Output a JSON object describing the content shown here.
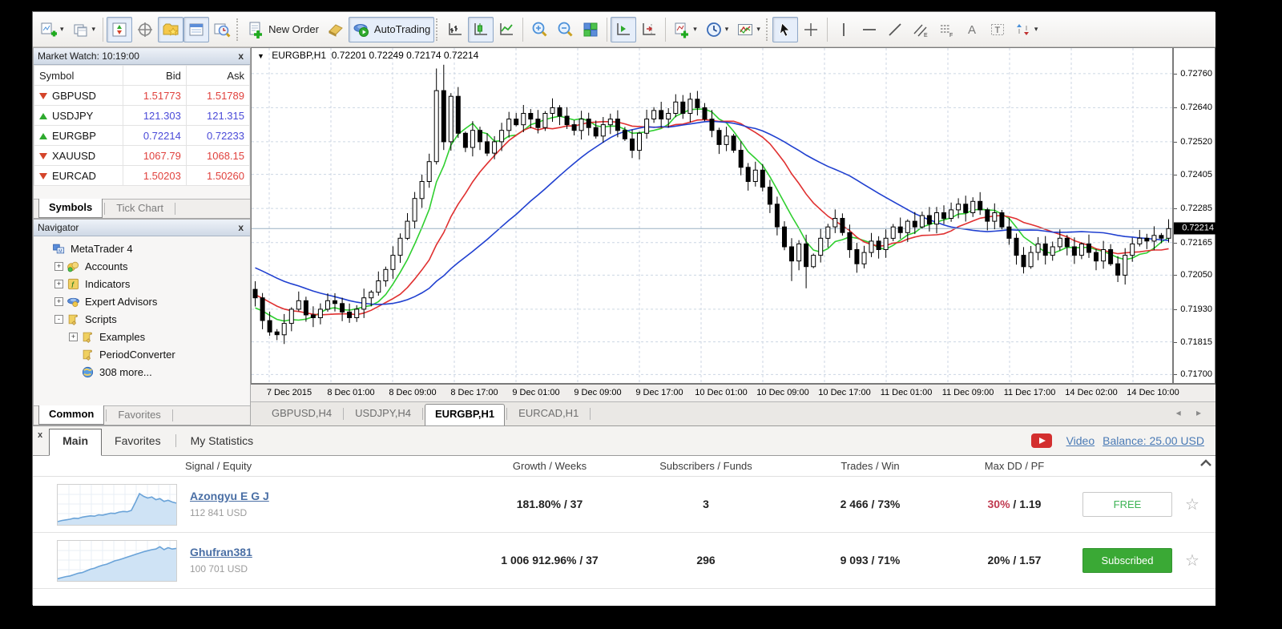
{
  "toolbar": {
    "groups": [
      {
        "grip": false,
        "buttons": [
          {
            "icon": "new-chart-icon",
            "dropdown": true
          },
          {
            "icon": "profiles-icon",
            "dropdown": true
          }
        ]
      },
      {
        "grip": false,
        "buttons": [
          {
            "icon": "market-watch-icon",
            "pressed": true
          },
          {
            "icon": "data-window-icon"
          },
          {
            "icon": "navigator-icon",
            "pressed": true
          },
          {
            "icon": "terminal-icon",
            "pressed": true
          },
          {
            "icon": "strategy-tester-icon"
          }
        ]
      },
      {
        "grip": true,
        "buttons": [
          {
            "icon": "new-order-icon",
            "label": "New Order"
          },
          {
            "icon": "metaeditor-icon"
          },
          {
            "icon": "autotrading-icon",
            "label": "AutoTrading",
            "pressed": true
          }
        ]
      },
      {
        "grip": true,
        "buttons": [
          {
            "icon": "bar-chart-icon"
          },
          {
            "icon": "candlestick-icon",
            "pressed": true
          },
          {
            "icon": "line-chart-icon"
          }
        ]
      },
      {
        "grip": false,
        "buttons": [
          {
            "icon": "zoom-in-icon"
          },
          {
            "icon": "zoom-out-icon"
          },
          {
            "icon": "tile-windows-icon"
          }
        ]
      },
      {
        "grip": false,
        "buttons": [
          {
            "icon": "auto-scroll-icon",
            "pressed": true
          },
          {
            "icon": "chart-shift-icon"
          }
        ]
      },
      {
        "grip": false,
        "buttons": [
          {
            "icon": "indicators-icon",
            "dropdown": true
          },
          {
            "icon": "periods-icon",
            "dropdown": true
          },
          {
            "icon": "templates-icon",
            "dropdown": true
          }
        ]
      },
      {
        "grip": true,
        "buttons": [
          {
            "icon": "cursor-icon",
            "pressed": true
          },
          {
            "icon": "crosshair-icon"
          }
        ]
      },
      {
        "grip": false,
        "buttons": [
          {
            "icon": "vertical-line-icon"
          },
          {
            "icon": "horizontal-line-icon"
          },
          {
            "icon": "trendline-icon"
          },
          {
            "icon": "channel-icon"
          },
          {
            "icon": "fibonacci-icon"
          },
          {
            "icon": "text-icon"
          },
          {
            "icon": "text-label-icon"
          },
          {
            "icon": "arrows-icon",
            "dropdown": true
          }
        ]
      }
    ]
  },
  "market_watch": {
    "title": "Market Watch: 10:19:00",
    "close_label": "x",
    "columns": [
      "Symbol",
      "Bid",
      "Ask"
    ],
    "rows": [
      {
        "symbol": "GBPUSD",
        "bid": "1.51773",
        "ask": "1.51789",
        "direction": "down",
        "color": "#e0413d"
      },
      {
        "symbol": "USDJPY",
        "bid": "121.303",
        "ask": "121.315",
        "direction": "up",
        "color": "#4a4ad8"
      },
      {
        "symbol": "EURGBP",
        "bid": "0.72214",
        "ask": "0.72233",
        "direction": "up",
        "color": "#4a4ad8"
      },
      {
        "symbol": "XAUUSD",
        "bid": "1067.79",
        "ask": "1068.15",
        "direction": "down",
        "color": "#e0413d"
      },
      {
        "symbol": "EURCAD",
        "bid": "1.50203",
        "ask": "1.50260",
        "direction": "down",
        "color": "#e0413d"
      }
    ],
    "tabs": [
      {
        "label": "Symbols",
        "active": true
      },
      {
        "label": "Tick Chart",
        "active": false
      }
    ]
  },
  "navigator": {
    "title": "Navigator",
    "close_label": "x",
    "items": [
      {
        "label": "MetaTrader 4",
        "icon": "mt4-icon",
        "level": 0,
        "expand": ""
      },
      {
        "label": "Accounts",
        "icon": "accounts-icon",
        "level": 1,
        "expand": "+"
      },
      {
        "label": "Indicators",
        "icon": "indicator-f-icon",
        "level": 1,
        "expand": "+"
      },
      {
        "label": "Expert Advisors",
        "icon": "expert-advisor-icon",
        "level": 1,
        "expand": "+"
      },
      {
        "label": "Scripts",
        "icon": "script-icon",
        "level": 1,
        "expand": "-"
      },
      {
        "label": "Examples",
        "icon": "script-icon",
        "level": 2,
        "expand": "+"
      },
      {
        "label": "PeriodConverter",
        "icon": "script-icon",
        "level": 2,
        "expand": ""
      },
      {
        "label": "308 more...",
        "icon": "globe-icon",
        "level": 2,
        "expand": ""
      }
    ],
    "tabs": [
      {
        "label": "Common",
        "active": true
      },
      {
        "label": "Favorites",
        "active": false
      }
    ]
  },
  "chart": {
    "title": "EURGBP,H1",
    "ohlc": "0.72201 0.72249 0.72174 0.72214",
    "current_price": "0.72214",
    "price_labels": [
      "0.72760",
      "0.72640",
      "0.72520",
      "0.72405",
      "0.72285",
      "0.72165",
      "0.72050",
      "0.71930",
      "0.71815",
      "0.71700"
    ],
    "time_labels": [
      "7 Dec 2015",
      "8 Dec 01:00",
      "8 Dec 09:00",
      "8 Dec 17:00",
      "9 Dec 01:00",
      "9 Dec 09:00",
      "9 Dec 17:00",
      "10 Dec 01:00",
      "10 Dec 09:00",
      "10 Dec 17:00",
      "11 Dec 01:00",
      "11 Dec 09:00",
      "11 Dec 17:00",
      "14 Dec 02:00",
      "14 Dec 10:00"
    ]
  },
  "chart_data": {
    "type": "candlestick",
    "symbol": "EURGBP",
    "period": "H1",
    "open": 0.72201,
    "high": 0.72249,
    "low": 0.72174,
    "close": 0.72214,
    "price_max": 0.7285,
    "price_min": 0.7167,
    "current_price": 0.72214,
    "grid_color": "#ccd6e3",
    "bull_color": "#ffffff",
    "bear_color": "#000000",
    "wick_color": "#000000",
    "ma_lines": [
      {
        "period": 6,
        "color": "#2fcf2f"
      },
      {
        "period": 14,
        "color": "#e03030"
      },
      {
        "period": 30,
        "color": "#2040d0"
      }
    ],
    "closes": [
      0.7197,
      0.7189,
      0.7185,
      0.7184,
      0.7188,
      0.7193,
      0.7196,
      0.7191,
      0.719,
      0.7193,
      0.7196,
      0.7195,
      0.7192,
      0.719,
      0.7193,
      0.7197,
      0.7199,
      0.7203,
      0.7207,
      0.7212,
      0.7218,
      0.7224,
      0.7232,
      0.7238,
      0.7245,
      0.727,
      0.7252,
      0.7268,
      0.7255,
      0.725,
      0.7256,
      0.7252,
      0.7248,
      0.7252,
      0.7256,
      0.726,
      0.7258,
      0.7262,
      0.726,
      0.7257,
      0.7262,
      0.7264,
      0.7261,
      0.7258,
      0.7256,
      0.726,
      0.7257,
      0.7254,
      0.7258,
      0.726,
      0.7256,
      0.7253,
      0.7249,
      0.7255,
      0.726,
      0.7263,
      0.726,
      0.7262,
      0.7266,
      0.7262,
      0.7267,
      0.7264,
      0.726,
      0.7256,
      0.7251,
      0.7254,
      0.7249,
      0.7243,
      0.7238,
      0.7242,
      0.7236,
      0.723,
      0.7222,
      0.7215,
      0.721,
      0.7216,
      0.7208,
      0.7212,
      0.7218,
      0.7222,
      0.7225,
      0.722,
      0.7214,
      0.7209,
      0.7213,
      0.7217,
      0.7214,
      0.7218,
      0.7222,
      0.722,
      0.7224,
      0.7222,
      0.7226,
      0.7223,
      0.7227,
      0.7225,
      0.7228,
      0.723,
      0.7227,
      0.7231,
      0.7228,
      0.7224,
      0.7227,
      0.7222,
      0.7218,
      0.7212,
      0.7208,
      0.7213,
      0.7216,
      0.7212,
      0.7215,
      0.7218,
      0.7215,
      0.7212,
      0.7216,
      0.7213,
      0.721,
      0.7214,
      0.7209,
      0.7205,
      0.7212,
      0.7216,
      0.7218,
      0.7217,
      0.7219,
      0.7218,
      0.72214
    ]
  },
  "chart_tabs": {
    "tabs": [
      {
        "label": "GBPUSD,H4",
        "active": false
      },
      {
        "label": "USDJPY,H4",
        "active": false
      },
      {
        "label": "EURGBP,H1",
        "active": true
      },
      {
        "label": "EURCAD,H1",
        "active": false
      }
    ],
    "arrows": "◂ ▸"
  },
  "signals": {
    "close_label": "x",
    "tabs": [
      {
        "label": "Main",
        "active": true
      },
      {
        "label": "Favorites",
        "active": false
      },
      {
        "label": "My Statistics",
        "active": false
      }
    ],
    "video_label": "Video",
    "balance_label": "Balance: 25.00 USD",
    "columns": [
      "Signal / Equity",
      "Growth / Weeks",
      "Subscribers / Funds",
      "Trades / Win",
      "Max DD / PF"
    ],
    "rows": [
      {
        "name": "Azongyu E G J",
        "equity": "112 841 USD",
        "growth": "181.80% / 37",
        "subscribers": "3",
        "trades": "2 466 / 73%",
        "maxdd": "30%",
        "maxdd_red": true,
        "pf": " / 1.19",
        "action": "FREE",
        "action_style": "free",
        "spark": [
          0.05,
          0.08,
          0.1,
          0.12,
          0.15,
          0.14,
          0.18,
          0.2,
          0.22,
          0.21,
          0.25,
          0.24,
          0.27,
          0.3,
          0.29,
          0.33,
          0.35,
          0.34,
          0.38,
          0.62,
          0.88,
          0.8,
          0.75,
          0.78,
          0.7,
          0.73,
          0.65,
          0.68,
          0.63,
          0.6
        ]
      },
      {
        "name": "Ghufran381",
        "equity": "100 701 USD",
        "growth": "1 006 912.96% / 37",
        "subscribers": "296",
        "trades": "9 093 / 71%",
        "maxdd": "20%",
        "maxdd_red": false,
        "pf": " / 1.57",
        "action": "Subscribed",
        "action_style": "subscribed",
        "spark": [
          0.02,
          0.05,
          0.08,
          0.1,
          0.14,
          0.18,
          0.2,
          0.25,
          0.3,
          0.33,
          0.38,
          0.42,
          0.45,
          0.5,
          0.55,
          0.58,
          0.62,
          0.66,
          0.7,
          0.74,
          0.78,
          0.82,
          0.85,
          0.88,
          0.9,
          0.97,
          0.88,
          0.94,
          0.9,
          0.92
        ]
      }
    ],
    "spark_line_color": "#6aa3d8",
    "spark_fill_color": "#cfe3f5"
  }
}
